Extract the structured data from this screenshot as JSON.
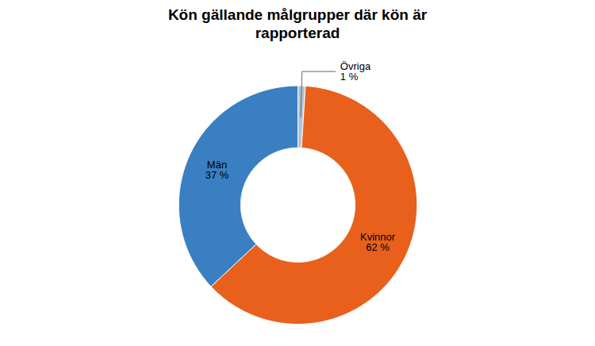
{
  "chart_data": {
    "type": "pie",
    "title": "Kön gällande målgrupper där kön är\nrapporterad",
    "categories": [
      "Övriga",
      "Kvinnor",
      "Män"
    ],
    "values": [
      1,
      62,
      37
    ],
    "value_labels": [
      "1 %",
      "62 %",
      "37 %"
    ],
    "colors": [
      "#B0C4D8",
      "#E8601C",
      "#3A7FC1"
    ],
    "data_labels": true
  }
}
